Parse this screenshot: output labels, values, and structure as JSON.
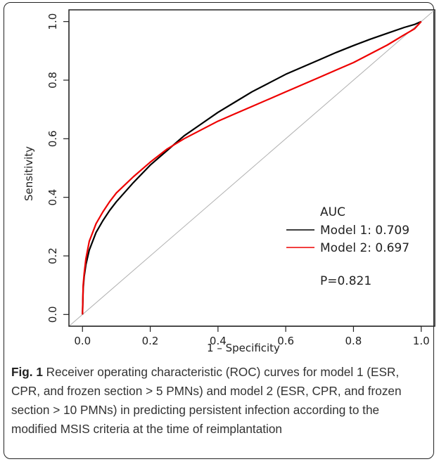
{
  "chart_data": {
    "type": "line",
    "xlabel": "1 – Specificity",
    "ylabel": "Sensitivity",
    "xlim": [
      -0.04,
      1.04
    ],
    "ylim": [
      -0.04,
      1.04
    ],
    "xticks": [
      "0.0",
      "0.2",
      "0.4",
      "0.6",
      "0.8",
      "1.0"
    ],
    "yticks": [
      "0.0",
      "0.2",
      "0.4",
      "0.6",
      "0.8",
      "1.0"
    ],
    "grid": false,
    "legend_position": "bottom-right",
    "legend_title": "AUC",
    "annotation": "P=0.821",
    "reference_line": {
      "x": [
        -0.04,
        1.04
      ],
      "y": [
        -0.04,
        1.04
      ],
      "color": "#b0b0b0"
    },
    "series": [
      {
        "name": "Model 1: 0.709",
        "color": "#000000",
        "x": [
          0.0,
          0.002,
          0.005,
          0.01,
          0.02,
          0.04,
          0.06,
          0.08,
          0.1,
          0.15,
          0.2,
          0.25,
          0.3,
          0.35,
          0.4,
          0.45,
          0.5,
          0.55,
          0.6,
          0.65,
          0.7,
          0.75,
          0.8,
          0.85,
          0.9,
          0.95,
          0.98,
          1.0
        ],
        "y": [
          0.0,
          0.09,
          0.13,
          0.17,
          0.22,
          0.28,
          0.32,
          0.355,
          0.385,
          0.45,
          0.51,
          0.56,
          0.61,
          0.65,
          0.69,
          0.725,
          0.76,
          0.79,
          0.82,
          0.845,
          0.87,
          0.895,
          0.918,
          0.94,
          0.96,
          0.98,
          0.99,
          1.0
        ]
      },
      {
        "name": "Model 2: 0.697",
        "color": "#ee0000",
        "x": [
          0.0,
          0.002,
          0.005,
          0.01,
          0.02,
          0.04,
          0.06,
          0.08,
          0.1,
          0.15,
          0.2,
          0.25,
          0.3,
          0.35,
          0.4,
          0.45,
          0.5,
          0.55,
          0.6,
          0.65,
          0.7,
          0.75,
          0.8,
          0.85,
          0.9,
          0.95,
          0.98,
          1.0
        ],
        "y": [
          0.0,
          0.1,
          0.14,
          0.19,
          0.25,
          0.31,
          0.35,
          0.385,
          0.415,
          0.47,
          0.52,
          0.565,
          0.6,
          0.63,
          0.66,
          0.685,
          0.71,
          0.735,
          0.76,
          0.785,
          0.81,
          0.835,
          0.86,
          0.89,
          0.92,
          0.955,
          0.975,
          1.0
        ]
      }
    ]
  },
  "caption": {
    "label": "Fig. 1",
    "text": " Receiver operating characteristic (ROC) curves for model 1 (ESR, CPR, and frozen section > 5 PMNs) and model 2 (ESR, CPR, and frozen section > 10 PMNs) in predicting persistent infection according to the modified MSIS criteria at the time of reimplantation"
  }
}
